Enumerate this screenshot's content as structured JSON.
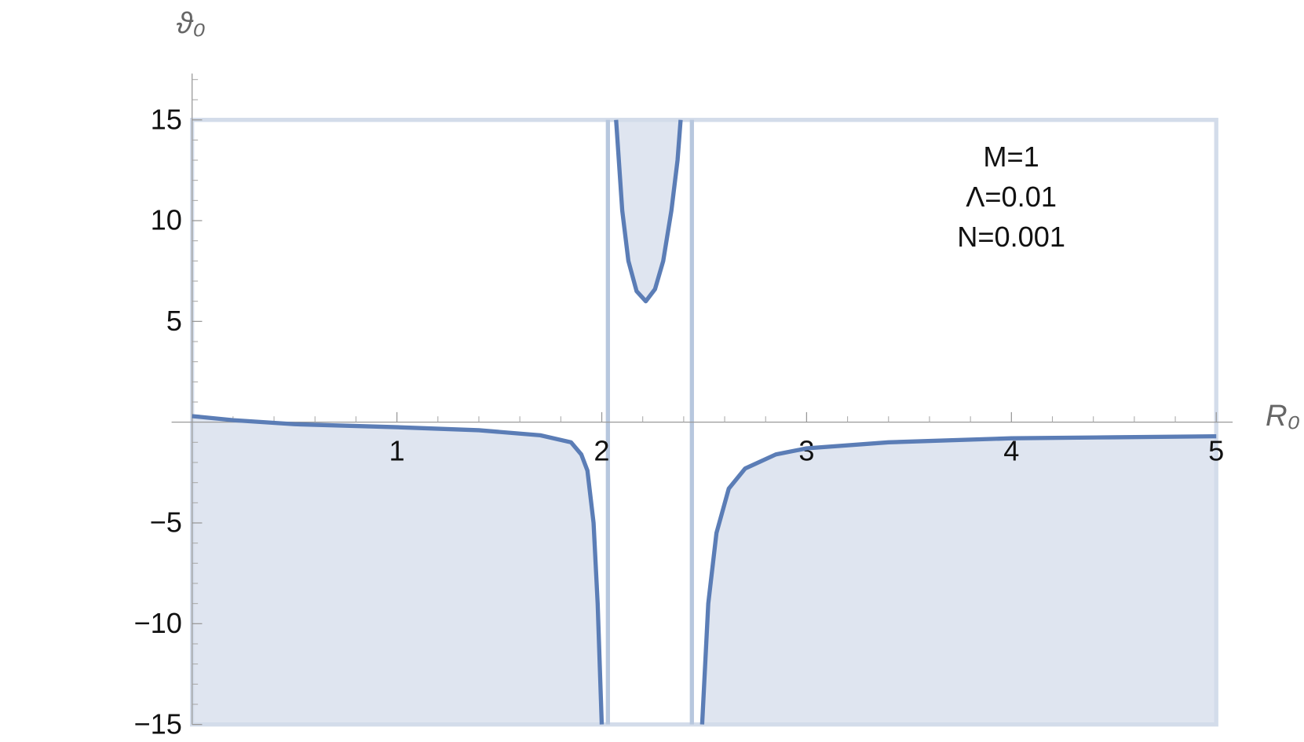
{
  "chart_data": {
    "type": "line",
    "xlabel": "R₀",
    "ylabel": "ϑ₀",
    "annotations": [
      "M=1",
      "Λ=0.01",
      "N=0.001"
    ],
    "xlim": [
      -0.1,
      5.08
    ],
    "ylim": [
      -15,
      17.3
    ],
    "xticks": [
      1,
      2,
      3,
      4,
      5
    ],
    "yticks": [
      {
        "value": -15,
        "label": "−15"
      },
      {
        "value": -10,
        "label": "−10"
      },
      {
        "value": -5,
        "label": "−5"
      },
      5,
      10,
      15
    ],
    "xminorticks": [
      0.2,
      0.4,
      0.6,
      0.8,
      1.2,
      1.4,
      1.6,
      1.8,
      2.2,
      2.4,
      2.6,
      2.8,
      3.2,
      3.4,
      3.6,
      3.8,
      4.2,
      4.4,
      4.6,
      4.8
    ],
    "yminorticks": [
      -14,
      -13,
      -12,
      -11,
      -9,
      -8,
      -7,
      -6,
      -4,
      -3,
      -2,
      -1,
      1,
      2,
      3,
      4,
      6,
      7,
      8,
      9,
      11,
      12,
      13,
      14,
      16,
      17
    ],
    "frame": {
      "x": [
        0,
        5
      ],
      "y": [
        -15,
        15
      ],
      "color": "#d3dcea"
    },
    "asymptotes": [
      2.03,
      2.44
    ],
    "asymptote_color": "#b7c7de",
    "fill_color": "#dfe5f0",
    "series": [
      {
        "color": "#5b7db6",
        "fill": "below",
        "x": [
          0,
          0.2,
          0.5,
          1,
          1.4,
          1.7,
          1.85,
          1.9,
          1.93,
          1.96,
          1.98,
          2.0
        ],
        "values": [
          0.3,
          0.1,
          -0.1,
          -0.25,
          -0.4,
          -0.65,
          -1.0,
          -1.6,
          -2.4,
          -5,
          -9,
          -15
        ]
      },
      {
        "color": "#5b7db6",
        "fill": "above",
        "x": [
          2.07,
          2.1,
          2.13,
          2.17,
          2.215,
          2.26,
          2.3,
          2.34,
          2.37,
          2.385
        ],
        "values": [
          15,
          10.5,
          8,
          6.5,
          6,
          6.6,
          8,
          10.5,
          13,
          15
        ]
      },
      {
        "color": "#5b7db6",
        "fill": "below",
        "x": [
          2.49,
          2.52,
          2.56,
          2.62,
          2.7,
          2.85,
          3.0,
          3.4,
          4.0,
          4.5,
          5.0
        ],
        "values": [
          -15,
          -9,
          -5.5,
          -3.3,
          -2.3,
          -1.6,
          -1.3,
          -1.0,
          -0.8,
          -0.75,
          -0.7
        ]
      }
    ]
  }
}
